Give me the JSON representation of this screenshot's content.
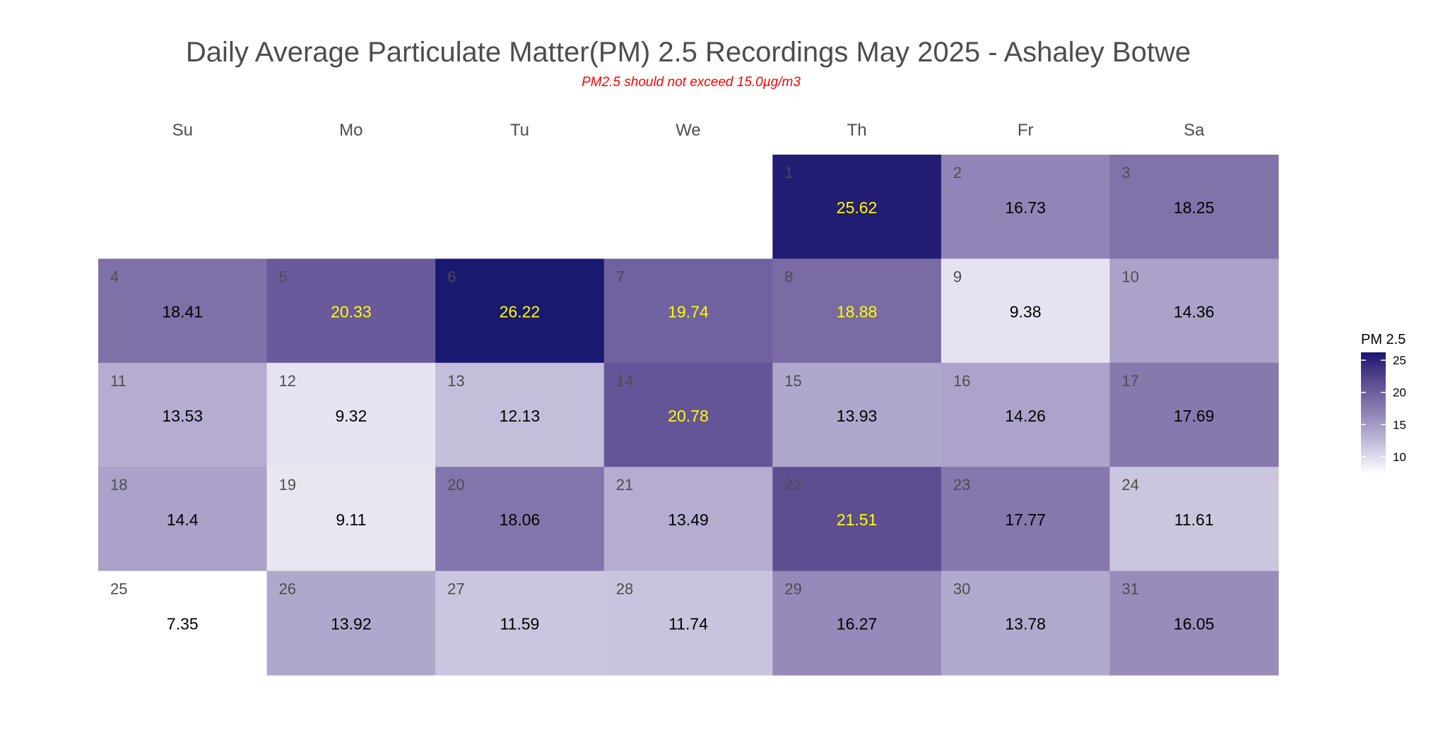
{
  "chart_data": {
    "type": "heatmap",
    "subtype": "calendar",
    "title": "Daily Average Particulate Matter(PM) 2.5 Recordings May 2025 -  Ashaley Botwe",
    "subtitle": "PM2.5 should not exceed 15.0µg/m3",
    "weekdays": [
      "Su",
      "Mo",
      "Tu",
      "We",
      "Th",
      "Fr",
      "Sa"
    ],
    "first_weekday_index": 4,
    "days": [
      1,
      2,
      3,
      4,
      5,
      6,
      7,
      8,
      9,
      10,
      11,
      12,
      13,
      14,
      15,
      16,
      17,
      18,
      19,
      20,
      21,
      22,
      23,
      24,
      25,
      26,
      27,
      28,
      29,
      30,
      31
    ],
    "values": [
      25.62,
      16.73,
      18.25,
      18.41,
      20.33,
      26.22,
      19.74,
      18.88,
      9.38,
      14.36,
      13.53,
      9.32,
      12.13,
      20.78,
      13.93,
      14.26,
      17.69,
      14.4,
      9.11,
      18.06,
      13.49,
      21.51,
      17.77,
      11.61,
      7.35,
      13.92,
      11.59,
      11.74,
      16.27,
      13.78,
      16.05
    ],
    "value_labels": [
      "25.62",
      "16.73",
      "18.25",
      "18.41",
      "20.33",
      "26.22",
      "19.74",
      "18.88",
      "9.38",
      "14.36",
      "13.53",
      "9.32",
      "12.13",
      "20.78",
      "13.93",
      "14.26",
      "17.69",
      "14.4",
      "9.11",
      "18.06",
      "13.49",
      "21.51",
      "17.77",
      "11.61",
      "7.35",
      "13.92",
      "11.59",
      "11.74",
      "16.27",
      "13.78",
      "16.05"
    ],
    "highlight_threshold": 18.5,
    "legend": {
      "title": "PM 2.5",
      "ticks": [
        10,
        15,
        20,
        25
      ],
      "tick_labels": [
        "10",
        "15",
        "20",
        "25"
      ],
      "range": [
        7.35,
        26.22
      ],
      "placement": "right"
    },
    "colors": {
      "scale_stops": [
        [
          7.35,
          "#ffffff"
        ],
        [
          9.3,
          "#e7e3f0"
        ],
        [
          13.5,
          "#b5acd0"
        ],
        [
          16.7,
          "#9284b6"
        ],
        [
          18.4,
          "#7f71a8"
        ],
        [
          20.3,
          "#6a5a9c"
        ],
        [
          21.5,
          "#5d4d91"
        ],
        [
          25.6,
          "#231d73"
        ],
        [
          26.22,
          "#191970"
        ]
      ],
      "label_high": "#ffff00",
      "label_low": "#000000",
      "day_number": "#4d4d4d",
      "subtitle": "#ff0000"
    }
  }
}
